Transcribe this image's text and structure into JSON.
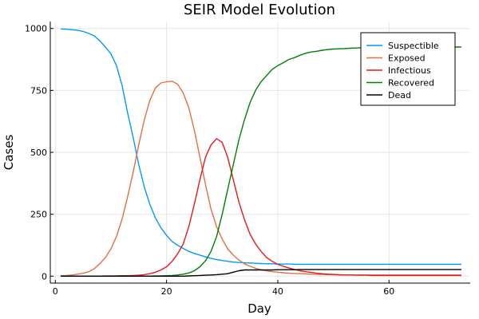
{
  "chart_data": {
    "type": "line",
    "title": "SEIR Model Evolution",
    "xlabel": "Day",
    "ylabel": "Cases",
    "xlim": [
      -0.9,
      74.6
    ],
    "ylim": [
      -28,
      1028
    ],
    "xticks": [
      0,
      20,
      40,
      60
    ],
    "yticks": [
      0,
      250,
      500,
      750,
      1000
    ],
    "grid": true,
    "legend_position": "top-right",
    "series": [
      {
        "name": "Suspectible",
        "color": "#009AFA",
        "x": [
          1,
          2,
          3,
          4,
          5,
          6,
          7,
          8,
          9,
          10,
          11,
          12,
          13,
          14,
          15,
          16,
          17,
          18,
          19,
          20,
          21,
          22,
          23,
          24,
          25,
          26,
          27,
          28,
          29,
          30,
          31,
          32,
          33,
          34,
          35,
          36,
          37,
          38,
          39,
          40,
          41,
          42,
          43,
          44,
          45,
          46,
          47,
          48,
          49,
          50,
          51,
          52,
          53,
          54,
          55,
          56,
          57,
          58,
          59,
          60,
          61,
          62,
          63,
          64,
          65,
          66,
          67,
          68,
          69,
          70,
          71,
          72,
          73
        ],
        "y": [
          998,
          997,
          995,
          993,
          988,
          980,
          970,
          950,
          925,
          898,
          850,
          770,
          660,
          560,
          450,
          360,
          290,
          235,
          195,
          165,
          140,
          125,
          112,
          100,
          92,
          85,
          78,
          72,
          67,
          63,
          60,
          57,
          55,
          54,
          53,
          52,
          51,
          50,
          50,
          49,
          49,
          49,
          48,
          48,
          48,
          48,
          48,
          48,
          48,
          48,
          48,
          48,
          48,
          48,
          48,
          48,
          48,
          48,
          48,
          48,
          48,
          48,
          48,
          48,
          48,
          48,
          48,
          48,
          48,
          48,
          48,
          48,
          48
        ]
      },
      {
        "name": "Exposed",
        "color": "#E26F46",
        "x": [
          1,
          2,
          3,
          4,
          5,
          6,
          7,
          8,
          9,
          10,
          11,
          12,
          13,
          14,
          15,
          16,
          17,
          18,
          19,
          20,
          21,
          22,
          23,
          24,
          25,
          26,
          27,
          28,
          29,
          30,
          31,
          32,
          33,
          34,
          35,
          36,
          37,
          38,
          39,
          40,
          41,
          42,
          43,
          44,
          45,
          46,
          47,
          48,
          49,
          50,
          51,
          52,
          53,
          54,
          55,
          56,
          57,
          58,
          59,
          60,
          61,
          62,
          63,
          64,
          65,
          66,
          67,
          68,
          69,
          70,
          71,
          72,
          73
        ],
        "y": [
          2,
          3,
          5,
          8,
          12,
          18,
          30,
          50,
          75,
          110,
          160,
          230,
          320,
          420,
          530,
          630,
          710,
          760,
          780,
          785,
          787,
          775,
          740,
          680,
          590,
          480,
          370,
          270,
          200,
          150,
          110,
          85,
          65,
          50,
          40,
          32,
          26,
          22,
          18,
          16,
          14,
          12,
          11,
          10,
          9,
          8,
          7,
          7,
          6,
          6,
          5,
          5,
          5,
          5,
          5,
          5,
          5,
          5,
          5,
          5,
          5,
          5,
          5,
          5,
          5,
          5,
          5,
          5,
          5,
          5,
          5,
          5,
          5
        ]
      },
      {
        "name": "Infectious",
        "color": "#E41A1C",
        "x": [
          1,
          2,
          3,
          4,
          5,
          6,
          7,
          8,
          9,
          10,
          11,
          12,
          13,
          14,
          15,
          16,
          17,
          18,
          19,
          20,
          21,
          22,
          23,
          24,
          25,
          26,
          27,
          28,
          29,
          30,
          31,
          32,
          33,
          34,
          35,
          36,
          37,
          38,
          39,
          40,
          41,
          42,
          43,
          44,
          45,
          46,
          47,
          48,
          49,
          50,
          51,
          52,
          53,
          54,
          55,
          56,
          57,
          58,
          59,
          60,
          61,
          62,
          63,
          64,
          65,
          66,
          67,
          68,
          69,
          70,
          71,
          72,
          73
        ],
        "y": [
          0,
          0,
          0,
          0,
          0,
          0,
          0,
          0,
          1,
          1,
          1,
          2,
          2,
          3,
          4,
          6,
          10,
          16,
          25,
          38,
          60,
          90,
          130,
          200,
          290,
          390,
          480,
          530,
          555,
          540,
          480,
          390,
          300,
          230,
          170,
          130,
          100,
          75,
          60,
          48,
          40,
          33,
          27,
          22,
          18,
          15,
          12,
          10,
          8,
          7,
          6,
          5,
          5,
          4,
          4,
          4,
          3,
          3,
          3,
          3,
          3,
          3,
          3,
          3,
          3,
          3,
          3,
          3,
          3,
          3,
          3,
          3,
          3
        ]
      },
      {
        "name": "Recovered",
        "color": "#008000",
        "x": [
          1,
          2,
          3,
          4,
          5,
          6,
          7,
          8,
          9,
          10,
          11,
          12,
          13,
          14,
          15,
          16,
          17,
          18,
          19,
          20,
          21,
          22,
          23,
          24,
          25,
          26,
          27,
          28,
          29,
          30,
          31,
          32,
          33,
          34,
          35,
          36,
          37,
          38,
          39,
          40,
          41,
          42,
          43,
          44,
          45,
          46,
          47,
          48,
          49,
          50,
          51,
          52,
          53,
          54,
          55,
          56,
          57,
          58,
          59,
          60,
          61,
          62,
          63,
          64,
          65,
          66,
          67,
          68,
          69,
          70,
          71,
          72,
          73
        ],
        "y": [
          0,
          0,
          0,
          0,
          0,
          0,
          0,
          0,
          0,
          0,
          0,
          0,
          0,
          0,
          0,
          0,
          0,
          1,
          1,
          2,
          3,
          5,
          8,
          13,
          22,
          38,
          62,
          100,
          160,
          250,
          350,
          450,
          550,
          630,
          700,
          750,
          785,
          810,
          835,
          850,
          862,
          875,
          882,
          892,
          900,
          905,
          908,
          912,
          915,
          917,
          918,
          919,
          920,
          921,
          922,
          922,
          923,
          923,
          924,
          924,
          924,
          925,
          925,
          925,
          925,
          925,
          925,
          925,
          925,
          925,
          925,
          925,
          925
        ]
      },
      {
        "name": "Dead",
        "color": "#000000",
        "x": [
          1,
          2,
          3,
          4,
          5,
          6,
          7,
          8,
          9,
          10,
          11,
          12,
          13,
          14,
          15,
          16,
          17,
          18,
          19,
          20,
          21,
          22,
          23,
          24,
          25,
          26,
          27,
          28,
          29,
          30,
          31,
          32,
          33,
          34,
          35,
          36,
          37,
          38,
          39,
          40,
          41,
          42,
          43,
          44,
          45,
          46,
          47,
          48,
          49,
          50,
          51,
          52,
          53,
          54,
          55,
          56,
          57,
          58,
          59,
          60,
          61,
          62,
          63,
          64,
          65,
          66,
          67,
          68,
          69,
          70,
          71,
          72,
          73
        ],
        "y": [
          0,
          0,
          0,
          0,
          0,
          0,
          0,
          0,
          0,
          0,
          0,
          0,
          0,
          0,
          0,
          0,
          0,
          0,
          0,
          0,
          0,
          0,
          0,
          1,
          2,
          3,
          4,
          5,
          6,
          8,
          10,
          16,
          22,
          25,
          25,
          25,
          25,
          25,
          25,
          26,
          26,
          26,
          26,
          27,
          27,
          27,
          27,
          27,
          27,
          27,
          27,
          27,
          27,
          27,
          27,
          27,
          27,
          27,
          27,
          27,
          27,
          27,
          27,
          27,
          27,
          27,
          27,
          27,
          27,
          27,
          27,
          27,
          27
        ]
      }
    ]
  }
}
